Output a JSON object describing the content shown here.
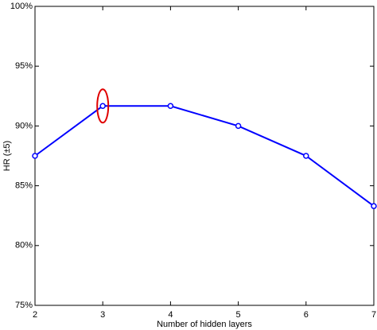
{
  "chart_data": {
    "type": "line",
    "xlabel": "Number of hidden layers",
    "ylabel": "HR (±5)",
    "x": [
      2,
      3,
      4,
      5,
      6,
      7
    ],
    "series": [
      {
        "color": "#0000ff",
        "values": [
          87.5,
          91.67,
          91.67,
          90,
          87.5,
          83.3
        ]
      }
    ],
    "xlim": [
      2,
      7
    ],
    "xticks": [
      2,
      3,
      4,
      5,
      6,
      7
    ],
    "ylim": [
      75,
      100
    ],
    "yticks": [
      {
        "value": 75,
        "label": "75%"
      },
      {
        "value": 80,
        "label": "80%"
      },
      {
        "value": 85,
        "label": "85%"
      },
      {
        "value": 90,
        "label": "90%"
      },
      {
        "value": 95,
        "label": "95%"
      },
      {
        "value": 100,
        "label": "100%"
      }
    ],
    "grid": false
  }
}
